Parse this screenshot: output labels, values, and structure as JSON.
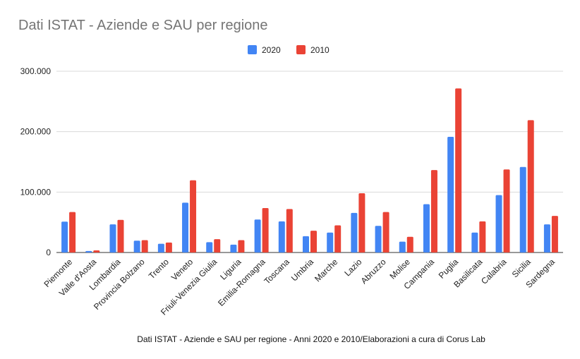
{
  "chart_data": {
    "type": "bar",
    "title": "Dati ISTAT - Aziende e SAU per regione",
    "caption": "Dati ISTAT - Aziende e SAU per regione - Anni 2020 e 2010/Elaborazioni a cura di Corus Lab",
    "xlabel": "",
    "ylabel": "",
    "ylim": [
      0,
      300000
    ],
    "yticks": [
      {
        "value": 0,
        "label": "0"
      },
      {
        "value": 100000,
        "label": "100.000"
      },
      {
        "value": 200000,
        "label": "200.000"
      },
      {
        "value": 300000,
        "label": "300.000"
      }
    ],
    "grid": true,
    "legend_position": "top",
    "categories": [
      "Piemonte",
      "Valle d'Aosta",
      "Lombardia",
      "Provincia Bolzano",
      "Trento",
      "Veneto",
      "Friuli-Venezia Giulia",
      "Liguria",
      "Emilia-Romagna",
      "Toscana",
      "Umbria",
      "Marche",
      "Lazio",
      "Abruzzo",
      "Molise",
      "Campania",
      "Puglia",
      "Basilicata",
      "Calabria",
      "Sicilia",
      "Sardegna"
    ],
    "series": [
      {
        "name": "2020",
        "color": "#4285f4",
        "values": [
          51000,
          2500,
          46500,
          19500,
          14500,
          82500,
          17000,
          13000,
          54500,
          51500,
          27000,
          33000,
          65500,
          44000,
          18000,
          80000,
          191500,
          33000,
          95000,
          141500,
          46500
        ]
      },
      {
        "name": "2010",
        "color": "#ea4335",
        "values": [
          67000,
          3500,
          54000,
          20500,
          16500,
          119500,
          22000,
          20500,
          73500,
          72000,
          36000,
          45000,
          98000,
          67000,
          26000,
          136500,
          271500,
          51500,
          137500,
          219000,
          60500
        ]
      }
    ]
  }
}
